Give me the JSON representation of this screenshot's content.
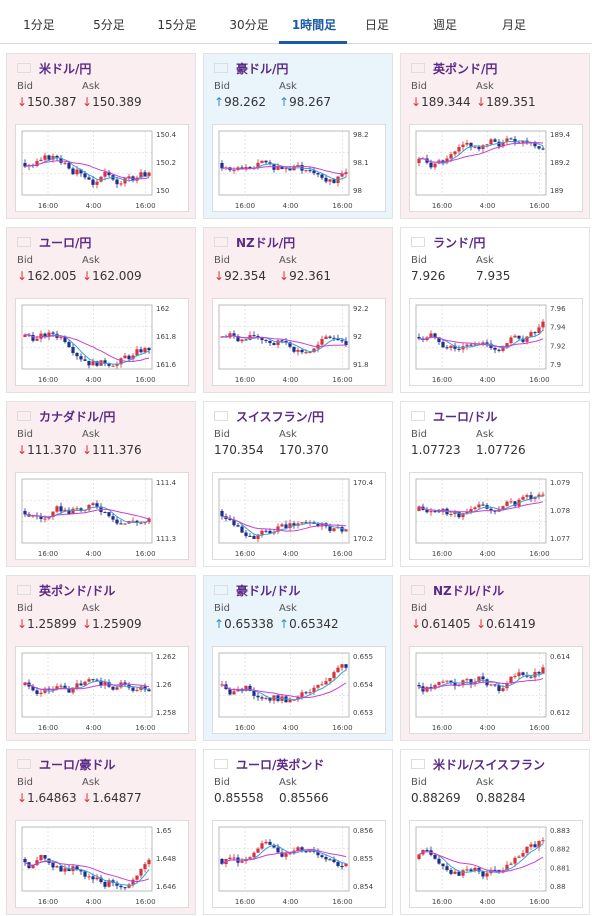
{
  "tabs": [
    {
      "label": "1分足",
      "active": false
    },
    {
      "label": "5分足",
      "active": false
    },
    {
      "label": "15分足",
      "active": false
    },
    {
      "label": "30分足",
      "active": false
    },
    {
      "label": "1時間足",
      "active": true
    },
    {
      "label": "日足",
      "active": false
    },
    {
      "label": "週足",
      "active": false
    },
    {
      "label": "月足",
      "active": false
    }
  ],
  "bid_label": "Bid",
  "ask_label": "Ask",
  "colors": {
    "up": "#2f8ac4",
    "down": "#d6333a",
    "pair": "#5a2a86",
    "ma_short": "#3aa0d8",
    "ma_long": "#c93fd2",
    "active_tab": "#1a5aa6"
  },
  "cards": [
    {
      "pair": "米ドル/円",
      "flag": "us-flag-icon",
      "trend": "down",
      "dir": "↓",
      "bid": "150.387",
      "ask": "150.389",
      "ticks": [
        "150.4",
        "150.2",
        "150"
      ],
      "x_ticks": [
        "16:00",
        "4:00",
        "16:00"
      ]
    },
    {
      "pair": "豪ドル/円",
      "flag": "au-flag-icon",
      "trend": "up",
      "dir": "↑",
      "bid": "98.262",
      "ask": "98.267",
      "ticks": [
        "98.2",
        "98.1",
        "98"
      ],
      "x_ticks": [
        "16:00",
        "4:00",
        "16:00"
      ]
    },
    {
      "pair": "英ポンド/円",
      "flag": "gb-flag-icon",
      "trend": "down",
      "dir": "↓",
      "bid": "189.344",
      "ask": "189.351",
      "ticks": [
        "189.4",
        "189.2",
        "189"
      ],
      "x_ticks": [
        "16:00",
        "4:00",
        "16:00"
      ]
    },
    {
      "pair": "ユーロ/円",
      "flag": "eu-flag-icon",
      "trend": "down",
      "dir": "↓",
      "bid": "162.005",
      "ask": "162.009",
      "ticks": [
        "162",
        "161.8",
        "161.6"
      ],
      "x_ticks": [
        "16:00",
        "4:00",
        "16:00"
      ]
    },
    {
      "pair": "NZドル/円",
      "flag": "nz-flag-icon",
      "trend": "down",
      "dir": "↓",
      "bid": "92.354",
      "ask": "92.361",
      "ticks": [
        "92.2",
        "92",
        "91.8"
      ],
      "x_ticks": [
        "16:00",
        "4:00",
        "16:00"
      ]
    },
    {
      "pair": "ランド/円",
      "flag": "za-flag-icon",
      "trend": "flat",
      "dir": "",
      "bid": "7.926",
      "ask": "7.935",
      "ticks": [
        "7.96",
        "7.94",
        "7.92",
        "7.9"
      ],
      "x_ticks": [
        "16:00",
        "4:00",
        "16:00"
      ]
    },
    {
      "pair": "カナダドル/円",
      "flag": "ca-flag-icon",
      "trend": "down",
      "dir": "↓",
      "bid": "111.370",
      "ask": "111.376",
      "ticks": [
        "111.4",
        "111.3"
      ],
      "x_ticks": [
        "16:00",
        "4:00",
        "16:00"
      ]
    },
    {
      "pair": "スイスフラン/円",
      "flag": "ch-flag-icon",
      "trend": "flat",
      "dir": "",
      "bid": "170.354",
      "ask": "170.370",
      "ticks": [
        "170.4",
        "170.2"
      ],
      "x_ticks": [
        "16:00",
        "4:00",
        "16:00"
      ]
    },
    {
      "pair": "ユーロ/ドル",
      "flag": "eu-us-flag-icon",
      "trend": "flat",
      "dir": "",
      "bid": "1.07723",
      "ask": "1.07726",
      "ticks": [
        "1.079",
        "1.078",
        "1.077"
      ],
      "x_ticks": [
        "16:00",
        "4:00",
        "16:00"
      ]
    },
    {
      "pair": "英ポンド/ドル",
      "flag": "gb-us-flag-icon",
      "trend": "down",
      "dir": "↓",
      "bid": "1.25899",
      "ask": "1.25909",
      "ticks": [
        "1.262",
        "1.26",
        "1.258"
      ],
      "x_ticks": [
        "16:00",
        "4:00",
        "16:00"
      ]
    },
    {
      "pair": "豪ドル/ドル",
      "flag": "au-us-flag-icon",
      "trend": "up",
      "dir": "↑",
      "bid": "0.65338",
      "ask": "0.65342",
      "ticks": [
        "0.655",
        "0.654",
        "0.653"
      ],
      "x_ticks": [
        "16:00",
        "4:00",
        "16:00"
      ]
    },
    {
      "pair": "NZドル/ドル",
      "flag": "nz-us-flag-icon",
      "trend": "down",
      "dir": "↓",
      "bid": "0.61405",
      "ask": "0.61419",
      "ticks": [
        "0.614",
        "0.612"
      ],
      "x_ticks": [
        "16:00",
        "4:00",
        "16:00"
      ]
    },
    {
      "pair": "ユーロ/豪ドル",
      "flag": "eu-au-flag-icon",
      "trend": "down",
      "dir": "↓",
      "bid": "1.64863",
      "ask": "1.64877",
      "ticks": [
        "1.65",
        "1.648",
        "1.646"
      ],
      "x_ticks": [
        "16:00",
        "4:00",
        "16:00"
      ]
    },
    {
      "pair": "ユーロ/英ポンド",
      "flag": "eu-gb-flag-icon",
      "trend": "flat",
      "dir": "",
      "bid": "0.85558",
      "ask": "0.85566",
      "ticks": [
        "0.856",
        "0.855",
        "0.854"
      ],
      "x_ticks": [
        "16:00",
        "4:00",
        "16:00"
      ]
    },
    {
      "pair": "米ドル/スイスフラン",
      "flag": "us-ch-flag-icon",
      "trend": "flat",
      "dir": "",
      "bid": "0.88269",
      "ask": "0.88284",
      "ticks": [
        "0.883",
        "0.882",
        "0.881",
        "0.88"
      ],
      "x_ticks": [
        "16:00",
        "4:00",
        "16:00"
      ]
    }
  ]
}
